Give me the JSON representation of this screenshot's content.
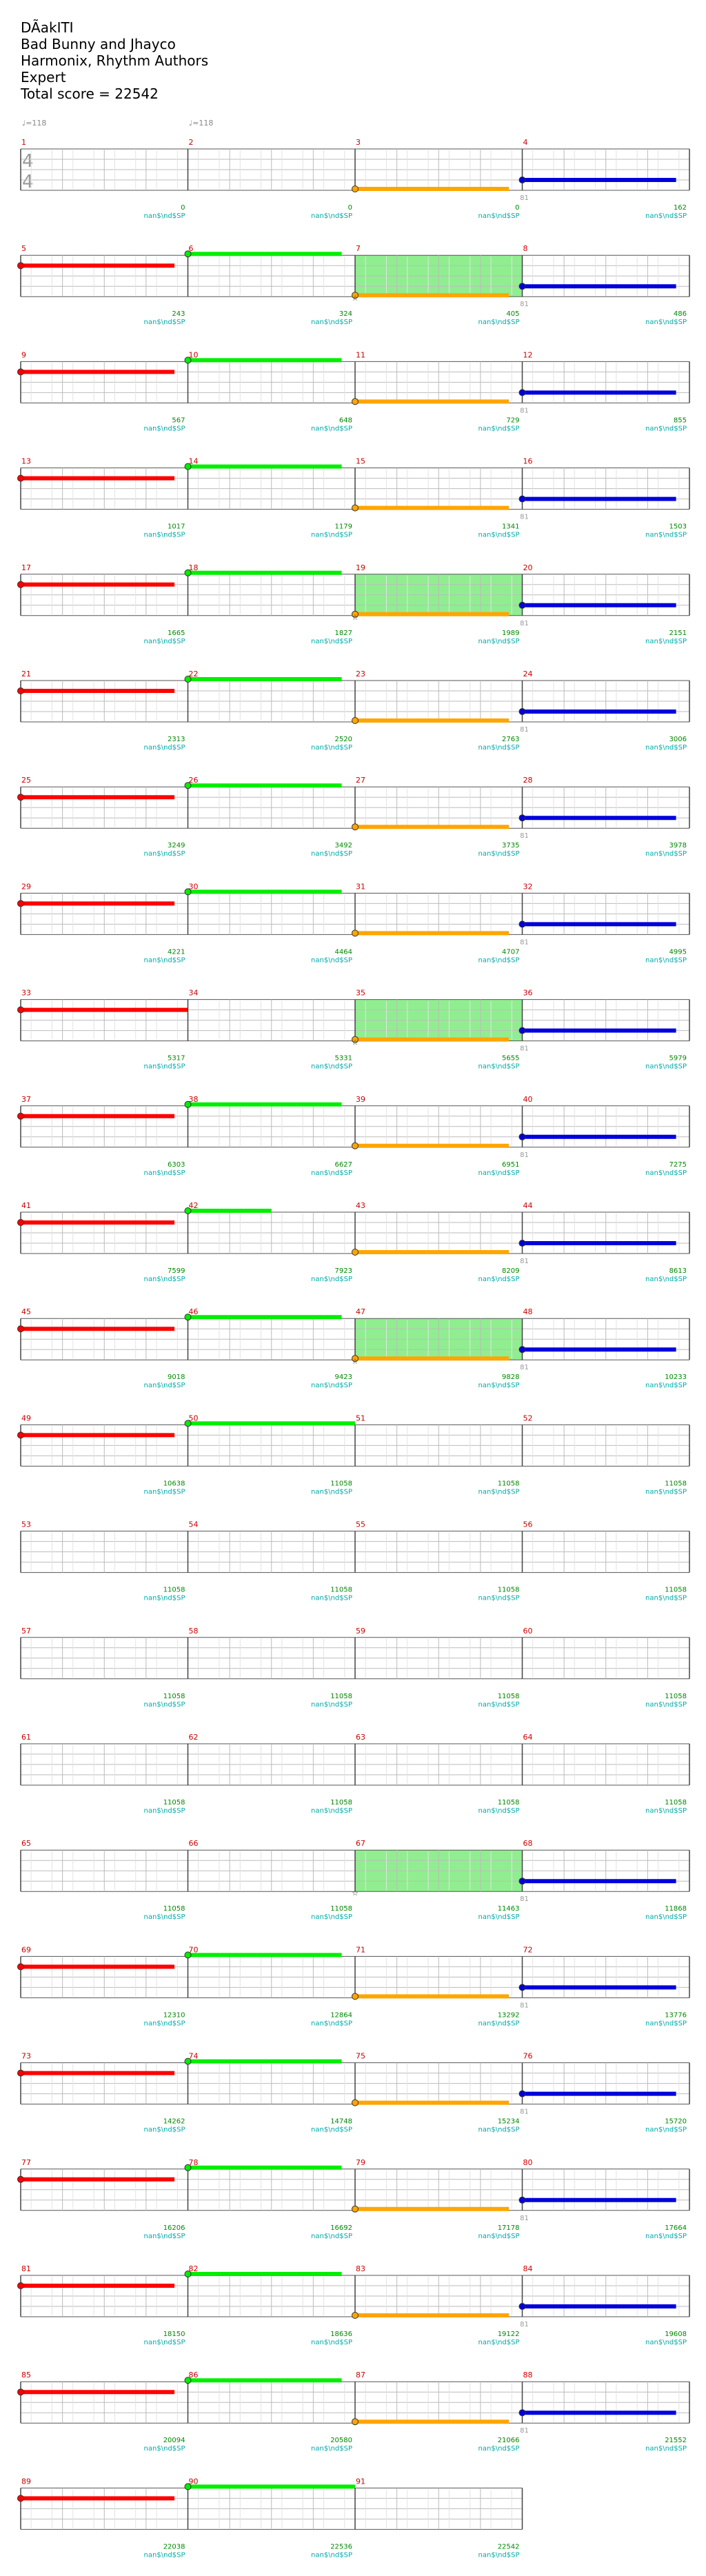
{
  "header": {
    "title": "DÃakITI",
    "artist": "Bad Bunny and Jhayco",
    "authors": "Harmonix, Rhythm Authors",
    "difficulty": "Expert",
    "total_score": "Total score = 22542"
  },
  "tempo_marks": [
    "♩=118",
    "♩=118"
  ],
  "time_signature": {
    "top": "4",
    "bottom": "4"
  },
  "colors": {
    "red": "#ff0000",
    "green": "#00ee00",
    "orange": "#ffa500",
    "blue": "#0000dd",
    "measure_number": "#cc0000",
    "score": "#008800",
    "tag": "#00aaaa",
    "overdrive": "#90ee90"
  },
  "tag_label": "nan$\\nd$SP",
  "chart_data": {
    "type": "table",
    "measures": [
      {
        "n": 1,
        "score": "0",
        "start": "",
        "note": null
      },
      {
        "n": 2,
        "score": "0",
        "start": "",
        "note": null
      },
      {
        "n": 3,
        "score": "0",
        "start": "",
        "note": "orange"
      },
      {
        "n": 4,
        "score": "162",
        "start": "81",
        "note": "blue"
      },
      {
        "n": 5,
        "score": "243",
        "start": "",
        "note": "red"
      },
      {
        "n": 6,
        "score": "324",
        "start": "",
        "note": "green"
      },
      {
        "n": 7,
        "score": "405",
        "start": "",
        "note": "orange",
        "od": true
      },
      {
        "n": 8,
        "score": "486",
        "start": "81",
        "note": "blue"
      },
      {
        "n": 9,
        "score": "567",
        "start": "",
        "note": "red"
      },
      {
        "n": 10,
        "score": "648",
        "start": "",
        "note": "green"
      },
      {
        "n": 11,
        "score": "729",
        "start": "",
        "note": "orange"
      },
      {
        "n": 12,
        "score": "855",
        "start": "81",
        "note": "blue"
      },
      {
        "n": 13,
        "score": "1017",
        "start": "",
        "note": "red"
      },
      {
        "n": 14,
        "score": "1179",
        "start": "",
        "note": "green"
      },
      {
        "n": 15,
        "score": "1341",
        "start": "",
        "note": "orange"
      },
      {
        "n": 16,
        "score": "1503",
        "start": "81",
        "note": "blue"
      },
      {
        "n": 17,
        "score": "1665",
        "start": "",
        "note": "red"
      },
      {
        "n": 18,
        "score": "1827",
        "start": "",
        "note": "green"
      },
      {
        "n": 19,
        "score": "1989",
        "start": "",
        "note": "orange",
        "od": true
      },
      {
        "n": 20,
        "score": "2151",
        "start": "81",
        "note": "blue"
      },
      {
        "n": 21,
        "score": "2313",
        "start": "",
        "note": "red"
      },
      {
        "n": 22,
        "score": "2520",
        "start": "",
        "note": "green"
      },
      {
        "n": 23,
        "score": "2763",
        "start": "",
        "note": "orange"
      },
      {
        "n": 24,
        "score": "3006",
        "start": "81",
        "note": "blue"
      },
      {
        "n": 25,
        "score": "3249",
        "start": "",
        "note": "red"
      },
      {
        "n": 26,
        "score": "3492",
        "start": "",
        "note": "green"
      },
      {
        "n": 27,
        "score": "3735",
        "start": "",
        "note": "orange"
      },
      {
        "n": 28,
        "score": "3978",
        "start": "81",
        "note": "blue"
      },
      {
        "n": 29,
        "score": "4221",
        "start": "",
        "note": "red"
      },
      {
        "n": 30,
        "score": "4464",
        "start": "",
        "note": "green"
      },
      {
        "n": 31,
        "score": "4707",
        "start": "",
        "note": "orange"
      },
      {
        "n": 32,
        "score": "4995",
        "start": "81",
        "note": "blue"
      },
      {
        "n": 33,
        "score": "5317",
        "start": "",
        "note": "red"
      },
      {
        "n": 34,
        "score": "5331",
        "start": "",
        "note": null
      },
      {
        "n": 35,
        "score": "5655",
        "start": "",
        "note": "orange",
        "od": true
      },
      {
        "n": 36,
        "score": "5979",
        "start": "81",
        "note": "blue"
      },
      {
        "n": 37,
        "score": "6303",
        "start": "",
        "note": "red"
      },
      {
        "n": 38,
        "score": "6627",
        "start": "",
        "note": "green"
      },
      {
        "n": 39,
        "score": "6951",
        "start": "",
        "note": "orange"
      },
      {
        "n": 40,
        "score": "7275",
        "start": "81",
        "note": "blue"
      },
      {
        "n": 41,
        "score": "7599",
        "start": "",
        "note": "red"
      },
      {
        "n": 42,
        "score": "7923",
        "start": "",
        "note": "green",
        "short": true
      },
      {
        "n": 43,
        "score": "8209",
        "start": "",
        "note": "orange"
      },
      {
        "n": 44,
        "score": "8613",
        "start": "81",
        "note": "blue"
      },
      {
        "n": 45,
        "score": "9018",
        "start": "",
        "note": "red"
      },
      {
        "n": 46,
        "score": "9423",
        "start": "",
        "note": "green"
      },
      {
        "n": 47,
        "score": "9828",
        "start": "",
        "note": "orange",
        "od": true
      },
      {
        "n": 48,
        "score": "10233",
        "start": "81",
        "note": "blue"
      },
      {
        "n": 49,
        "score": "10638",
        "start": "",
        "note": "red"
      },
      {
        "n": 50,
        "score": "11058",
        "start": "",
        "note": "green",
        "full": true
      },
      {
        "n": 51,
        "score": "11058",
        "start": "",
        "note": null
      },
      {
        "n": 52,
        "score": "11058",
        "start": "",
        "note": null
      },
      {
        "n": 53,
        "score": "11058",
        "start": "",
        "note": null
      },
      {
        "n": 54,
        "score": "11058",
        "start": "",
        "note": null
      },
      {
        "n": 55,
        "score": "11058",
        "start": "",
        "note": null
      },
      {
        "n": 56,
        "score": "11058",
        "start": "",
        "note": null
      },
      {
        "n": 57,
        "score": "11058",
        "start": "",
        "note": null
      },
      {
        "n": 58,
        "score": "11058",
        "start": "",
        "note": null
      },
      {
        "n": 59,
        "score": "11058",
        "start": "",
        "note": null
      },
      {
        "n": 60,
        "score": "11058",
        "start": "",
        "note": null
      },
      {
        "n": 61,
        "score": "11058",
        "start": "",
        "note": null
      },
      {
        "n": 62,
        "score": "11058",
        "start": "",
        "note": null
      },
      {
        "n": 63,
        "score": "11058",
        "start": "",
        "note": null
      },
      {
        "n": 64,
        "score": "11058",
        "start": "",
        "note": null
      },
      {
        "n": 65,
        "score": "11058",
        "start": "",
        "note": null
      },
      {
        "n": 66,
        "score": "11058",
        "start": "",
        "note": null
      },
      {
        "n": 67,
        "score": "11463",
        "start": "",
        "note": null,
        "od": true
      },
      {
        "n": 68,
        "score": "11868",
        "start": "81",
        "note": "blue"
      },
      {
        "n": 69,
        "score": "12310",
        "start": "",
        "note": "red"
      },
      {
        "n": 70,
        "score": "12864",
        "start": "",
        "note": "green"
      },
      {
        "n": 71,
        "score": "13292",
        "start": "",
        "note": "orange"
      },
      {
        "n": 72,
        "score": "13776",
        "start": "81",
        "note": "blue"
      },
      {
        "n": 73,
        "score": "14262",
        "start": "",
        "note": "red"
      },
      {
        "n": 74,
        "score": "14748",
        "start": "",
        "note": "green"
      },
      {
        "n": 75,
        "score": "15234",
        "start": "",
        "note": "orange"
      },
      {
        "n": 76,
        "score": "15720",
        "start": "81",
        "note": "blue"
      },
      {
        "n": 77,
        "score": "16206",
        "start": "",
        "note": "red"
      },
      {
        "n": 78,
        "score": "16692",
        "start": "",
        "note": "green"
      },
      {
        "n": 79,
        "score": "17178",
        "start": "",
        "note": "orange"
      },
      {
        "n": 80,
        "score": "17664",
        "start": "81",
        "note": "blue"
      },
      {
        "n": 81,
        "score": "18150",
        "start": "",
        "note": "red"
      },
      {
        "n": 82,
        "score": "18636",
        "start": "",
        "note": "green"
      },
      {
        "n": 83,
        "score": "19122",
        "start": "",
        "note": "orange"
      },
      {
        "n": 84,
        "score": "19608",
        "start": "81",
        "note": "blue"
      },
      {
        "n": 85,
        "score": "20094",
        "start": "",
        "note": "red"
      },
      {
        "n": 86,
        "score": "20580",
        "start": "",
        "note": "green"
      },
      {
        "n": 87,
        "score": "21066",
        "start": "",
        "note": "orange"
      },
      {
        "n": 88,
        "score": "21552",
        "start": "81",
        "note": "blue"
      },
      {
        "n": 89,
        "score": "22038",
        "start": "",
        "note": "red"
      },
      {
        "n": 90,
        "score": "22536",
        "start": "",
        "note": "green",
        "full": true
      },
      {
        "n": 91,
        "score": "22542",
        "start": "",
        "note": null
      }
    ]
  }
}
